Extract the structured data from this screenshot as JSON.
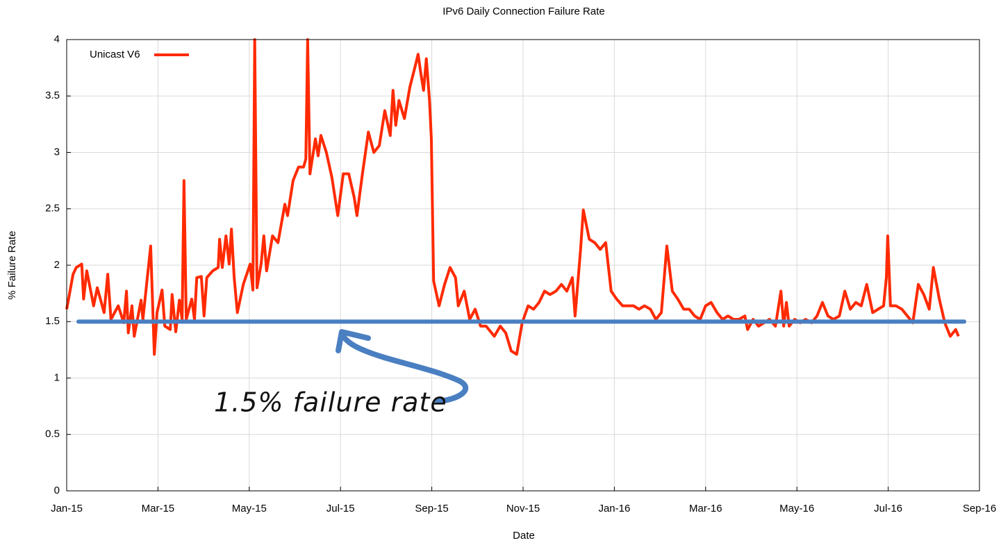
{
  "chart_data": {
    "type": "line",
    "title": "IPv6 Daily Connection Failure Rate",
    "x_label": "Date",
    "y_label": "% Failure Rate",
    "xlim": [
      0,
      20
    ],
    "ylim": [
      0,
      4
    ],
    "xticks": [
      {
        "value": 0,
        "label": "Jan-15"
      },
      {
        "value": 2,
        "label": "Mar-15"
      },
      {
        "value": 4,
        "label": "May-15"
      },
      {
        "value": 6,
        "label": "Jul-15"
      },
      {
        "value": 8,
        "label": "Sep-15"
      },
      {
        "value": 10,
        "label": "Nov-15"
      },
      {
        "value": 12,
        "label": "Jan-16"
      },
      {
        "value": 14,
        "label": "Mar-16"
      },
      {
        "value": 16,
        "label": "May-16"
      },
      {
        "value": 18,
        "label": "Jul-16"
      },
      {
        "value": 20,
        "label": "Sep-16"
      }
    ],
    "yticks": [
      0,
      0.5,
      1,
      1.5,
      2,
      2.5,
      3,
      3.5,
      4
    ],
    "grid": true,
    "legend": "top-left",
    "x": [
      0.0,
      0.14,
      0.21,
      0.33,
      0.37,
      0.44,
      0.59,
      0.67,
      0.82,
      0.9,
      0.97,
      1.13,
      1.25,
      1.31,
      1.35,
      1.43,
      1.48,
      1.63,
      1.67,
      1.84,
      1.92,
      1.98,
      2.09,
      2.15,
      2.27,
      2.31,
      2.39,
      2.47,
      2.53,
      2.57,
      2.62,
      2.74,
      2.8,
      2.85,
      2.95,
      3.01,
      3.07,
      3.2,
      3.32,
      3.35,
      3.41,
      3.49,
      3.56,
      3.61,
      3.67,
      3.74,
      3.87,
      4.02,
      4.08,
      4.12,
      4.17,
      4.26,
      4.32,
      4.38,
      4.51,
      4.63,
      4.78,
      4.84,
      4.96,
      5.08,
      5.19,
      5.24,
      5.28,
      5.33,
      5.45,
      5.51,
      5.57,
      5.69,
      5.81,
      5.94,
      6.06,
      6.18,
      6.3,
      6.36,
      6.48,
      6.61,
      6.73,
      6.85,
      6.97,
      7.09,
      7.15,
      7.21,
      7.28,
      7.4,
      7.52,
      7.64,
      7.7,
      7.76,
      7.82,
      7.88,
      7.95,
      7.99,
      8.04,
      8.16,
      8.28,
      8.4,
      8.52,
      8.58,
      8.71,
      8.83,
      8.95,
      9.07,
      9.19,
      9.37,
      9.5,
      9.62,
      9.74,
      9.86,
      9.98,
      10.11,
      10.23,
      10.35,
      10.47,
      10.59,
      10.72,
      10.84,
      10.96,
      11.08,
      11.14,
      11.26,
      11.32,
      11.45,
      11.57,
      11.69,
      11.81,
      11.93,
      12.05,
      12.18,
      12.3,
      12.42,
      12.54,
      12.66,
      12.79,
      12.91,
      13.03,
      13.15,
      13.27,
      13.39,
      13.52,
      13.64,
      13.76,
      13.88,
      14.0,
      14.12,
      14.25,
      14.37,
      14.49,
      14.61,
      14.73,
      14.86,
      14.92,
      15.04,
      15.16,
      15.28,
      15.4,
      15.53,
      15.65,
      15.71,
      15.77,
      15.83,
      15.95,
      16.07,
      16.19,
      16.32,
      16.44,
      16.56,
      16.68,
      16.8,
      16.93,
      17.05,
      17.17,
      17.29,
      17.41,
      17.53,
      17.66,
      17.78,
      17.9,
      17.96,
      17.99,
      18.05,
      18.17,
      18.3,
      18.42,
      18.54,
      18.66,
      18.78,
      18.9,
      18.99,
      19.12,
      19.24,
      19.36,
      19.48,
      19.54
    ],
    "series": [
      {
        "name": "Unicast V6",
        "color": "#ff2a00",
        "values": [
          1.61,
          1.92,
          1.98,
          2.01,
          1.7,
          1.95,
          1.64,
          1.8,
          1.58,
          1.92,
          1.52,
          1.64,
          1.49,
          1.77,
          1.4,
          1.64,
          1.37,
          1.69,
          1.52,
          2.17,
          1.21,
          1.58,
          1.78,
          1.46,
          1.43,
          1.74,
          1.41,
          1.69,
          1.52,
          2.75,
          1.52,
          1.7,
          1.52,
          1.89,
          1.9,
          1.55,
          1.89,
          1.95,
          1.98,
          2.23,
          1.98,
          2.26,
          2.01,
          2.32,
          1.89,
          1.58,
          1.83,
          2.01,
          1.78,
          4.0,
          1.8,
          2.01,
          2.26,
          1.95,
          2.26,
          2.2,
          2.54,
          2.44,
          2.75,
          2.87,
          2.87,
          2.94,
          4.0,
          2.81,
          3.12,
          2.97,
          3.15,
          3.0,
          2.78,
          2.44,
          2.81,
          2.81,
          2.6,
          2.44,
          2.81,
          3.18,
          3.0,
          3.06,
          3.37,
          3.15,
          3.55,
          3.24,
          3.46,
          3.3,
          3.58,
          3.77,
          3.87,
          3.7,
          3.55,
          3.83,
          3.46,
          3.12,
          1.86,
          1.64,
          1.83,
          1.98,
          1.89,
          1.64,
          1.77,
          1.52,
          1.61,
          1.46,
          1.46,
          1.37,
          1.46,
          1.4,
          1.24,
          1.21,
          1.49,
          1.64,
          1.61,
          1.67,
          1.77,
          1.74,
          1.77,
          1.83,
          1.77,
          1.89,
          1.55,
          2.14,
          2.49,
          2.23,
          2.2,
          2.14,
          2.2,
          1.77,
          1.7,
          1.64,
          1.64,
          1.64,
          1.61,
          1.64,
          1.61,
          1.52,
          1.58,
          2.17,
          1.77,
          1.7,
          1.61,
          1.61,
          1.55,
          1.52,
          1.64,
          1.67,
          1.58,
          1.52,
          1.55,
          1.52,
          1.52,
          1.55,
          1.43,
          1.52,
          1.46,
          1.49,
          1.52,
          1.46,
          1.77,
          1.46,
          1.67,
          1.46,
          1.52,
          1.49,
          1.52,
          1.49,
          1.55,
          1.67,
          1.55,
          1.52,
          1.55,
          1.77,
          1.61,
          1.67,
          1.64,
          1.83,
          1.58,
          1.61,
          1.64,
          1.89,
          2.26,
          1.64,
          1.64,
          1.61,
          1.55,
          1.49,
          1.83,
          1.74,
          1.61,
          1.98,
          1.7,
          1.49,
          1.37,
          1.43,
          1.37
        ]
      }
    ],
    "reference_line": {
      "value": 1.5,
      "color": "#4a7fc1"
    },
    "annotation": "1.5% failure rate"
  }
}
